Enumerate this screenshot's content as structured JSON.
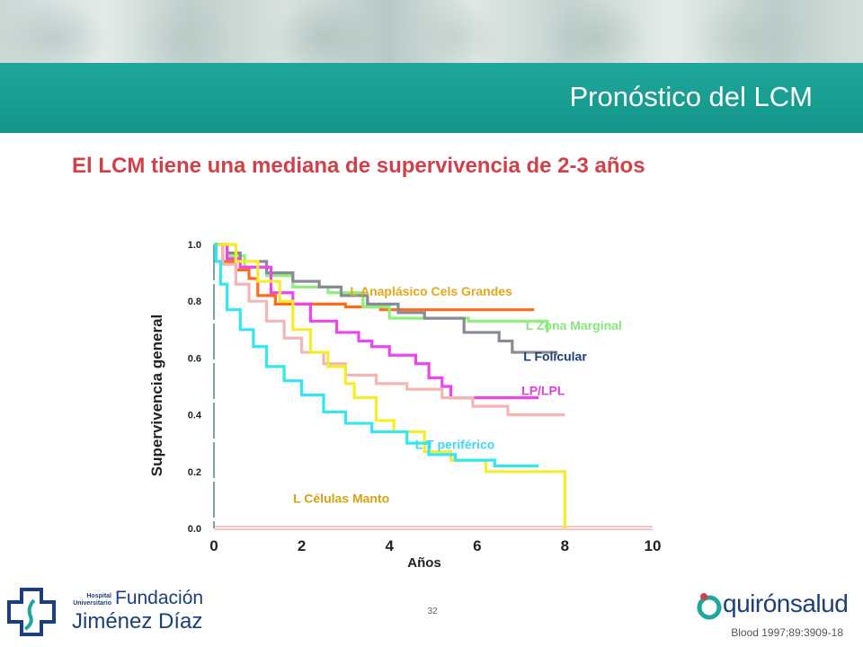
{
  "slide": {
    "title": "Pronóstico del LCM",
    "subtitle": "El LCM tiene una mediana de supervivencia de 2-3 años",
    "slide_number": "32",
    "citation": "Blood 1997;89:3909-18"
  },
  "logos": {
    "left": {
      "small": "Hospital Universitario",
      "line1": "Fundación",
      "line2": "Jiménez Díaz"
    },
    "right": {
      "part1": "quirón",
      "part2": "salud"
    }
  },
  "colors": {
    "header": "#17998d",
    "title_text": "#ffffff",
    "subtitle": "#d2404a",
    "navy": "#1b3f7a"
  },
  "chart_data": {
    "type": "line",
    "xlabel": "Años",
    "ylabel": "Supervivencia general",
    "xlim": [
      0,
      10
    ],
    "ylim": [
      0,
      1.0
    ],
    "xticks": [
      "0",
      "2",
      "4",
      "6",
      "8",
      "10"
    ],
    "yticks": [
      "0.0",
      "0.2",
      "0.4",
      "0.6",
      "0.8",
      "1.0"
    ],
    "series": [
      {
        "name": "L Anaplásico Cels Grandes",
        "color": "#ff6a1a",
        "label_color": "#e2a818",
        "points": [
          [
            0,
            1.0
          ],
          [
            0.2,
            0.94
          ],
          [
            0.5,
            0.91
          ],
          [
            0.8,
            0.88
          ],
          [
            1.0,
            0.82
          ],
          [
            1.4,
            0.79
          ],
          [
            2.4,
            0.79
          ],
          [
            3.0,
            0.78
          ],
          [
            3.8,
            0.77
          ],
          [
            7.3,
            0.77
          ]
        ],
        "label_at": [
          6.8,
          0.82
        ]
      },
      {
        "name": "L Zona Marginal",
        "color": "#8ef07a",
        "label_color": "#86e87a",
        "points": [
          [
            0,
            1.0
          ],
          [
            0.3,
            0.96
          ],
          [
            0.7,
            0.92
          ],
          [
            1.2,
            0.89
          ],
          [
            1.8,
            0.85
          ],
          [
            2.6,
            0.83
          ],
          [
            3.4,
            0.78
          ],
          [
            4.0,
            0.74
          ],
          [
            5.8,
            0.73
          ],
          [
            7.6,
            0.69
          ]
        ],
        "label_at": [
          9.3,
          0.7
        ]
      },
      {
        "name": "L Folicular",
        "color": "#8a8a96",
        "label_color": "#1b3f7a",
        "points": [
          [
            0,
            1.0
          ],
          [
            0.3,
            0.97
          ],
          [
            0.6,
            0.94
          ],
          [
            1.2,
            0.9
          ],
          [
            1.8,
            0.87
          ],
          [
            2.4,
            0.85
          ],
          [
            2.9,
            0.82
          ],
          [
            3.5,
            0.79
          ],
          [
            4.2,
            0.76
          ],
          [
            4.8,
            0.74
          ],
          [
            5.7,
            0.69
          ],
          [
            6.5,
            0.66
          ],
          [
            6.8,
            0.62
          ],
          [
            7.8,
            0.61
          ]
        ],
        "label_at": [
          8.5,
          0.59
        ]
      },
      {
        "name": "LP/LPL",
        "color": "#ee44ee",
        "label_color": "#e040e0",
        "points": [
          [
            0,
            1.0
          ],
          [
            0.3,
            0.95
          ],
          [
            0.6,
            0.92
          ],
          [
            1.3,
            0.83
          ],
          [
            1.8,
            0.79
          ],
          [
            2.2,
            0.73
          ],
          [
            2.8,
            0.69
          ],
          [
            3.3,
            0.66
          ],
          [
            3.6,
            0.64
          ],
          [
            4.0,
            0.61
          ],
          [
            4.6,
            0.58
          ],
          [
            4.9,
            0.53
          ],
          [
            5.2,
            0.5
          ],
          [
            5.4,
            0.46
          ],
          [
            7.4,
            0.46
          ]
        ],
        "label_at": [
          8.0,
          0.47
        ]
      },
      {
        "name": "",
        "color": "#f4b6b4",
        "label_color": "#f4b6b4",
        "points": [
          [
            0,
            1.0
          ],
          [
            0.2,
            0.93
          ],
          [
            0.5,
            0.86
          ],
          [
            0.8,
            0.8
          ],
          [
            1.2,
            0.73
          ],
          [
            1.6,
            0.67
          ],
          [
            2.0,
            0.62
          ],
          [
            2.5,
            0.58
          ],
          [
            3.0,
            0.54
          ],
          [
            3.7,
            0.51
          ],
          [
            4.4,
            0.49
          ],
          [
            5.2,
            0.46
          ],
          [
            5.9,
            0.43
          ],
          [
            6.7,
            0.4
          ],
          [
            8.0,
            0.4
          ]
        ],
        "label_at": null
      },
      {
        "name": "L Células Manto",
        "color": "#f4ee2a",
        "label_color": "#d4a310",
        "points": [
          [
            0,
            1.0
          ],
          [
            0.5,
            0.94
          ],
          [
            1.0,
            0.87
          ],
          [
            1.5,
            0.8
          ],
          [
            1.8,
            0.7
          ],
          [
            2.2,
            0.62
          ],
          [
            2.6,
            0.57
          ],
          [
            3.0,
            0.51
          ],
          [
            3.2,
            0.46
          ],
          [
            3.7,
            0.38
          ],
          [
            4.1,
            0.34
          ],
          [
            4.8,
            0.27
          ],
          [
            5.4,
            0.24
          ],
          [
            6.2,
            0.2
          ],
          [
            7.6,
            0.2
          ],
          [
            8.0,
            0.2
          ],
          [
            8.0,
            0.0
          ]
        ],
        "label_at": [
          4.0,
          0.09
        ]
      },
      {
        "name": "L T periférico",
        "color": "#33e6f2",
        "label_color": "#40d8f0",
        "points": [
          [
            0,
            1.0
          ],
          [
            0.05,
            0.94
          ],
          [
            0.15,
            0.86
          ],
          [
            0.3,
            0.77
          ],
          [
            0.6,
            0.7
          ],
          [
            0.9,
            0.64
          ],
          [
            1.2,
            0.57
          ],
          [
            1.6,
            0.52
          ],
          [
            2.0,
            0.47
          ],
          [
            2.5,
            0.41
          ],
          [
            3.0,
            0.37
          ],
          [
            3.6,
            0.34
          ],
          [
            4.4,
            0.3
          ],
          [
            4.9,
            0.26
          ],
          [
            5.5,
            0.24
          ],
          [
            6.4,
            0.22
          ],
          [
            7.4,
            0.22
          ]
        ],
        "label_at": [
          6.4,
          0.28
        ]
      }
    ]
  }
}
